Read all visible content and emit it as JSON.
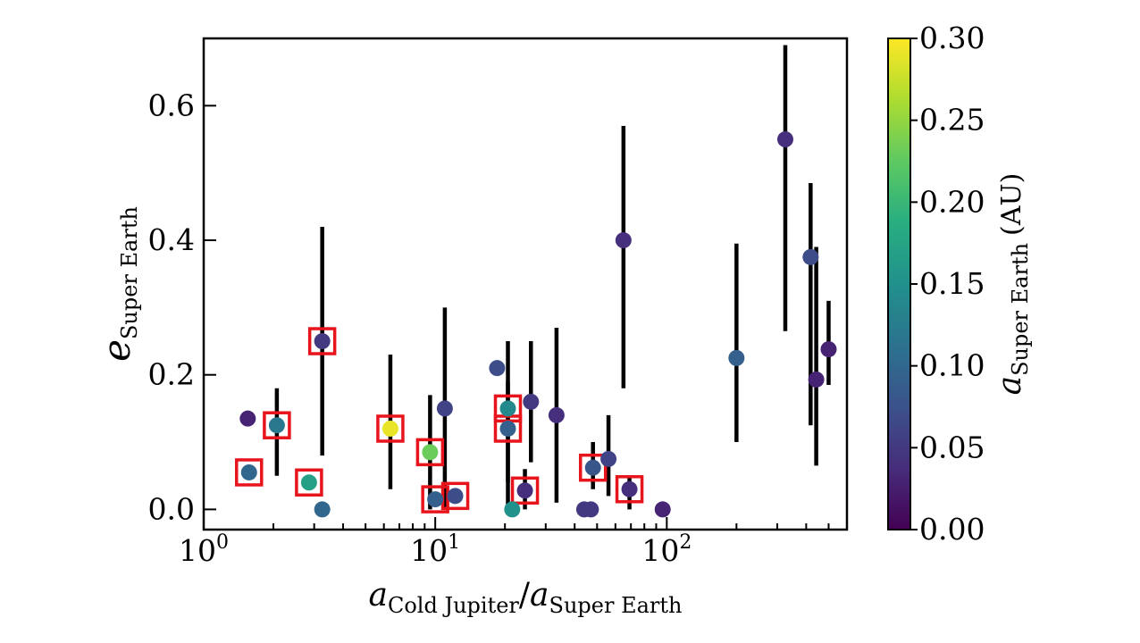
{
  "chart_data": {
    "type": "scatter",
    "x_scale": "log",
    "xlim": [
      1,
      600
    ],
    "ylim": [
      -0.03,
      0.7
    ],
    "grid": false,
    "xlabel": {
      "a1": "a",
      "s1": "Cold Jupiter",
      "slash": "/",
      "a2": "a",
      "s2": "Super Earth"
    },
    "ylabel": {
      "base": "e",
      "sub": "Super Earth"
    },
    "x_ticks": [
      {
        "value": 1,
        "base": "10",
        "exp": "0"
      },
      {
        "value": 10,
        "base": "10",
        "exp": "1"
      },
      {
        "value": 100,
        "base": "10",
        "exp": "2"
      }
    ],
    "y_ticks": [
      {
        "value": 0.0,
        "label": "0.0"
      },
      {
        "value": 0.2,
        "label": "0.2"
      },
      {
        "value": 0.4,
        "label": "0.4"
      },
      {
        "value": 0.6,
        "label": "0.6"
      }
    ],
    "colorbar": {
      "colormap": "viridis",
      "range": [
        0.0,
        0.3
      ],
      "label": {
        "a": "a",
        "sub": "Super Earth",
        "unit": "(AU)"
      },
      "ticks": [
        {
          "value": 0.0,
          "label": "0.00"
        },
        {
          "value": 0.05,
          "label": "0.05"
        },
        {
          "value": 0.1,
          "label": "0.10"
        },
        {
          "value": 0.15,
          "label": "0.15"
        },
        {
          "value": 0.2,
          "label": "0.20"
        },
        {
          "value": 0.25,
          "label": "0.25"
        },
        {
          "value": 0.3,
          "label": "0.30"
        }
      ]
    },
    "highlight_color": "#e8141c",
    "errorbar_color": "#000000",
    "points": [
      {
        "x": 1.55,
        "y": 0.135,
        "c": 0.03,
        "err": null,
        "highlight": false
      },
      {
        "x": 1.57,
        "y": 0.055,
        "c": 0.1,
        "err": null,
        "highlight": true
      },
      {
        "x": 2.07,
        "y": 0.125,
        "c": 0.12,
        "err": [
          0.05,
          0.18
        ],
        "highlight": true
      },
      {
        "x": 2.85,
        "y": 0.04,
        "c": 0.17,
        "err": null,
        "highlight": true
      },
      {
        "x": 3.25,
        "y": 0.0,
        "c": 0.1,
        "err": null,
        "highlight": false
      },
      {
        "x": 3.25,
        "y": 0.25,
        "c": 0.05,
        "err": [
          0.08,
          0.42
        ],
        "highlight": true
      },
      {
        "x": 6.4,
        "y": 0.12,
        "c": 0.29,
        "err": [
          0.03,
          0.23
        ],
        "highlight": true
      },
      {
        "x": 9.5,
        "y": 0.085,
        "c": 0.23,
        "err": [
          0.0,
          0.17
        ],
        "highlight": true
      },
      {
        "x": 10.0,
        "y": 0.015,
        "c": 0.09,
        "err": null,
        "highlight": true
      },
      {
        "x": 11.0,
        "y": 0.15,
        "c": 0.06,
        "err": [
          0.0,
          0.3
        ],
        "highlight": false
      },
      {
        "x": 12.2,
        "y": 0.02,
        "c": 0.07,
        "err": null,
        "highlight": true
      },
      {
        "x": 18.5,
        "y": 0.21,
        "c": 0.07,
        "err": null,
        "highlight": false
      },
      {
        "x": 20.6,
        "y": 0.15,
        "c": 0.14,
        "err": [
          0.0,
          0.25
        ],
        "highlight": true
      },
      {
        "x": 20.6,
        "y": 0.12,
        "c": 0.09,
        "err": [
          0.04,
          0.19
        ],
        "highlight": true
      },
      {
        "x": 21.5,
        "y": 0.0,
        "c": 0.15,
        "err": null,
        "highlight": false
      },
      {
        "x": 24.4,
        "y": 0.028,
        "c": 0.04,
        "err": [
          0.0,
          0.06
        ],
        "highlight": true
      },
      {
        "x": 25.9,
        "y": 0.16,
        "c": 0.05,
        "err": [
          0.07,
          0.25
        ],
        "highlight": false
      },
      {
        "x": 33.4,
        "y": 0.14,
        "c": 0.04,
        "err": [
          0.01,
          0.27
        ],
        "highlight": false
      },
      {
        "x": 44.0,
        "y": 0.0,
        "c": 0.05,
        "err": null,
        "highlight": false
      },
      {
        "x": 47.0,
        "y": 0.0,
        "c": 0.05,
        "err": null,
        "highlight": false
      },
      {
        "x": 48.0,
        "y": 0.062,
        "c": 0.08,
        "err": [
          0.03,
          0.1
        ],
        "highlight": true
      },
      {
        "x": 56.0,
        "y": 0.075,
        "c": 0.06,
        "err": [
          0.02,
          0.14
        ],
        "highlight": false
      },
      {
        "x": 65.0,
        "y": 0.4,
        "c": 0.04,
        "err": [
          0.18,
          0.57
        ],
        "highlight": false
      },
      {
        "x": 69.0,
        "y": 0.03,
        "c": 0.04,
        "err": [
          0.0,
          0.05
        ],
        "highlight": true
      },
      {
        "x": 96.0,
        "y": 0.0,
        "c": 0.03,
        "err": null,
        "highlight": false
      },
      {
        "x": 200.0,
        "y": 0.225,
        "c": 0.09,
        "err": [
          0.1,
          0.395
        ],
        "highlight": false
      },
      {
        "x": 325.0,
        "y": 0.55,
        "c": 0.04,
        "err": [
          0.265,
          0.69
        ],
        "highlight": false
      },
      {
        "x": 418.0,
        "y": 0.375,
        "c": 0.07,
        "err": [
          0.125,
          0.485
        ],
        "highlight": false
      },
      {
        "x": 442.0,
        "y": 0.193,
        "c": 0.03,
        "err": [
          0.065,
          0.39
        ],
        "highlight": false
      },
      {
        "x": 500.0,
        "y": 0.238,
        "c": 0.03,
        "err": [
          0.185,
          0.31
        ],
        "highlight": false
      }
    ]
  }
}
